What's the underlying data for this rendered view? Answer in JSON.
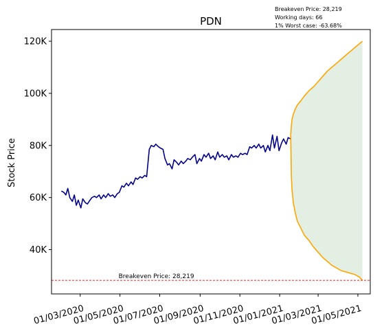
{
  "chart_data": {
    "type": "line",
    "title": "PDN",
    "xlabel": "",
    "ylabel": "Stock Price",
    "info_lines": [
      "Breakeven Price: 28,219",
      "Working days: 66",
      "1% Worst case: -63.68%"
    ],
    "breakeven": {
      "value": 28219,
      "label": "Breakeven Price: 28,219",
      "label_x": "2020-05-01"
    },
    "xlim": [
      "2020-01-17",
      "2021-05-20"
    ],
    "ylim": [
      23000,
      124500
    ],
    "x_ticks": [
      {
        "date": "2020-03-01",
        "label": "01/03/2020"
      },
      {
        "date": "2020-05-01",
        "label": "01/05/2020"
      },
      {
        "date": "2020-07-01",
        "label": "01/07/2020"
      },
      {
        "date": "2020-09-01",
        "label": "01/09/2020"
      },
      {
        "date": "2020-11-01",
        "label": "01/11/2020"
      },
      {
        "date": "2021-01-01",
        "label": "01/01/2021"
      },
      {
        "date": "2021-03-01",
        "label": "01/03/2021"
      },
      {
        "date": "2021-05-01",
        "label": "01/05/2021"
      }
    ],
    "y_ticks": [
      {
        "value": 40000,
        "label": "40K"
      },
      {
        "value": 60000,
        "label": "60K"
      },
      {
        "value": 80000,
        "label": "80K"
      },
      {
        "value": 100000,
        "label": "100K"
      },
      {
        "value": 120000,
        "label": "120K"
      }
    ],
    "series": [
      {
        "color": "#00008b",
        "x": [
          "2020-02-01",
          "2020-02-05",
          "2020-02-08",
          "2020-02-11",
          "2020-02-14",
          "2020-02-18",
          "2020-02-21",
          "2020-02-24",
          "2020-02-27",
          "2020-03-02",
          "2020-03-05",
          "2020-03-09",
          "2020-03-12",
          "2020-03-16",
          "2020-03-19",
          "2020-03-23",
          "2020-03-26",
          "2020-03-30",
          "2020-04-02",
          "2020-04-06",
          "2020-04-09",
          "2020-04-13",
          "2020-04-16",
          "2020-04-20",
          "2020-04-23",
          "2020-04-27",
          "2020-04-30",
          "2020-05-04",
          "2020-05-07",
          "2020-05-11",
          "2020-05-14",
          "2020-05-18",
          "2020-05-21",
          "2020-05-25",
          "2020-05-28",
          "2020-06-01",
          "2020-06-04",
          "2020-06-08",
          "2020-06-11",
          "2020-06-15",
          "2020-06-18",
          "2020-06-22",
          "2020-06-25",
          "2020-06-29",
          "2020-07-02",
          "2020-07-06",
          "2020-07-09",
          "2020-07-13",
          "2020-07-16",
          "2020-07-20",
          "2020-07-23",
          "2020-07-27",
          "2020-07-30",
          "2020-08-03",
          "2020-08-06",
          "2020-08-10",
          "2020-08-13",
          "2020-08-17",
          "2020-08-20",
          "2020-08-24",
          "2020-08-27",
          "2020-08-31",
          "2020-09-03",
          "2020-09-07",
          "2020-09-10",
          "2020-09-14",
          "2020-09-17",
          "2020-09-21",
          "2020-09-24",
          "2020-09-28",
          "2020-10-01",
          "2020-10-05",
          "2020-10-08",
          "2020-10-12",
          "2020-10-15",
          "2020-10-19",
          "2020-10-22",
          "2020-10-26",
          "2020-10-29",
          "2020-11-02",
          "2020-11-05",
          "2020-11-09",
          "2020-11-12",
          "2020-11-16",
          "2020-11-19",
          "2020-11-23",
          "2020-11-26",
          "2020-11-30",
          "2020-12-03",
          "2020-12-07",
          "2020-12-10",
          "2020-12-14",
          "2020-12-17",
          "2020-12-21",
          "2020-12-24",
          "2020-12-28",
          "2020-12-31",
          "2021-01-04",
          "2021-01-07",
          "2021-01-11",
          "2021-01-14",
          "2021-01-18"
        ],
        "y": [
          62500,
          62000,
          61000,
          63500,
          60000,
          58500,
          61000,
          57000,
          59000,
          56000,
          59500,
          58000,
          57500,
          59000,
          60000,
          60500,
          60000,
          61000,
          59500,
          61000,
          60000,
          61500,
          60500,
          61000,
          60000,
          61500,
          62000,
          64500,
          64000,
          65500,
          64500,
          66000,
          65000,
          67500,
          67000,
          68000,
          67500,
          68500,
          68000,
          78500,
          80000,
          79500,
          80500,
          79500,
          79000,
          78500,
          75000,
          72500,
          73000,
          71000,
          74500,
          73500,
          72500,
          74000,
          73000,
          74000,
          75000,
          74500,
          75500,
          76500,
          73000,
          75000,
          74000,
          76500,
          75500,
          77000,
          75000,
          76000,
          74500,
          77500,
          75500,
          76500,
          75500,
          76000,
          74500,
          76500,
          75500,
          76000,
          75500,
          77000,
          76500,
          77000,
          76500,
          79500,
          79000,
          80000,
          79000,
          80500,
          79000,
          80000,
          77500,
          80000,
          78000,
          84000,
          79000,
          83500,
          78000,
          81000,
          82500,
          80500,
          83000,
          82500
        ],
        "width": 1.6
      },
      {
        "color": "#ffa500",
        "x": [
          "2021-01-18",
          "2021-01-19",
          "2021-01-20",
          "2021-01-22",
          "2021-01-25",
          "2021-01-28",
          "2021-02-02",
          "2021-02-08",
          "2021-02-15",
          "2021-02-22",
          "2021-03-01",
          "2021-03-08",
          "2021-03-15",
          "2021-03-22",
          "2021-03-29",
          "2021-04-05",
          "2021-04-12",
          "2021-04-19",
          "2021-04-26",
          "2021-05-03",
          "2021-05-08"
        ],
        "y": [
          84000,
          87500,
          90000,
          92000,
          94000,
          95500,
          97000,
          99000,
          101000,
          102500,
          104500,
          106500,
          108500,
          110000,
          111500,
          113000,
          114500,
          116000,
          117500,
          119000,
          120000
        ],
        "width": 1.6
      },
      {
        "color": "#ffa500",
        "x": [
          "2021-01-18",
          "2021-01-19",
          "2021-01-20",
          "2021-01-22",
          "2021-01-25",
          "2021-01-28",
          "2021-02-02",
          "2021-02-08",
          "2021-02-15",
          "2021-02-22",
          "2021-03-01",
          "2021-03-08",
          "2021-03-15",
          "2021-03-22",
          "2021-03-29",
          "2021-04-05",
          "2021-04-12",
          "2021-04-19",
          "2021-04-26",
          "2021-05-03",
          "2021-05-08"
        ],
        "y": [
          84000,
          68000,
          63000,
          58000,
          54000,
          51000,
          48500,
          45500,
          43500,
          41000,
          39000,
          37000,
          35500,
          34000,
          33000,
          32000,
          31500,
          31000,
          30500,
          29500,
          28219
        ],
        "width": 1.6
      }
    ],
    "fill_between": {
      "color": "#d8ead8",
      "opacity": 0.75
    },
    "grid": false,
    "legend": "none",
    "colors": {
      "spine": "#000000",
      "breakeven_line": "#ff0000"
    }
  }
}
